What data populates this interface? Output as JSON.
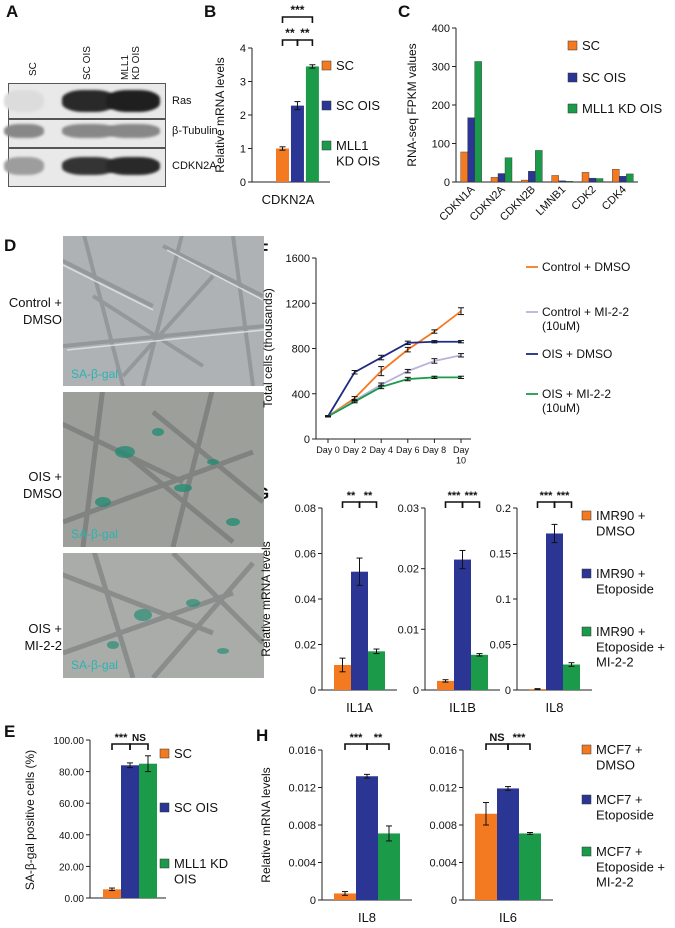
{
  "colors": {
    "orange": "#f37a20",
    "navy": "#2b3594",
    "green": "#1b9a4a",
    "lavender": "#b9b3da",
    "dark_navy": "#1f2a83",
    "teal": "#2bb3b0"
  },
  "panelA": {
    "letter": "A",
    "lanes": [
      "SC",
      "SC OIS",
      "MLL1\nKD OIS"
    ],
    "blots": [
      {
        "label": "Ras",
        "intensity": [
          0.05,
          0.9,
          0.95
        ]
      },
      {
        "label": "β-Tubulin",
        "intensity": [
          0.45,
          0.45,
          0.45
        ]
      },
      {
        "label": "CDKN2A",
        "intensity": [
          0.35,
          0.85,
          0.9
        ]
      }
    ]
  },
  "panelB": {
    "letter": "B",
    "chart_data": {
      "type": "bar",
      "categories": [
        "CDKN2A"
      ],
      "series": [
        {
          "name": "SC",
          "values": [
            1.0
          ],
          "error": [
            0.05
          ]
        },
        {
          "name": "SC OIS",
          "values": [
            2.28
          ],
          "error": [
            0.12
          ]
        },
        {
          "name": "MLL1\nKD OIS",
          "values": [
            3.45
          ],
          "error": [
            0.05
          ]
        }
      ],
      "ylabel": "Relative mRNA levels",
      "ylim": [
        0,
        4
      ],
      "yticks": [
        "0",
        "1",
        "2",
        "3",
        "4"
      ],
      "significance": [
        {
          "pair": [
            0,
            1
          ],
          "label": "**"
        },
        {
          "pair": [
            1,
            2
          ],
          "label": "**"
        },
        {
          "pair": [
            0,
            2
          ],
          "label": "***"
        }
      ]
    }
  },
  "panelC": {
    "letter": "C",
    "chart_data": {
      "type": "bar",
      "categories": [
        "CDKN1A",
        "CDKN2A",
        "CDKN2B",
        "LMNB1",
        "CDK2",
        "CDK4"
      ],
      "series": [
        {
          "name": "SC",
          "values": [
            78,
            12,
            5,
            17,
            25,
            33
          ]
        },
        {
          "name": "SC OIS",
          "values": [
            167,
            22,
            28,
            3,
            10,
            15
          ]
        },
        {
          "name": "MLL1 KD OIS",
          "values": [
            313,
            63,
            82,
            2,
            9,
            21
          ]
        }
      ],
      "ylabel": "RNA-seq FPKM values",
      "ylim": [
        0,
        400
      ],
      "yticks": [
        "0",
        "100",
        "200",
        "300",
        "400"
      ]
    }
  },
  "panelD": {
    "letter": "D",
    "rows": [
      {
        "label": "Control +\nDMSO",
        "stain": "SA-β-gal"
      },
      {
        "label": "OIS +\nDMSO",
        "stain": "SA-β-gal"
      },
      {
        "label": "OIS +\nMI-2-2",
        "stain": "SA-β-gal"
      }
    ]
  },
  "panelE": {
    "letter": "E",
    "chart_data": {
      "type": "bar",
      "categories": [
        ""
      ],
      "series": [
        {
          "name": "SC",
          "values": [
            5.5
          ],
          "error": [
            0.8
          ]
        },
        {
          "name": "SC OIS",
          "values": [
            84
          ],
          "error": [
            1.5
          ]
        },
        {
          "name": "MLL1 KD\nOIS",
          "values": [
            85
          ],
          "error": [
            5
          ]
        }
      ],
      "ylabel": "SA-β-gal positive cells (%)",
      "ylim": [
        0,
        100
      ],
      "yticks": [
        "0.00",
        "20.00",
        "40.00",
        "60.00",
        "80.00",
        "100.00"
      ],
      "significance": [
        {
          "pair": [
            0,
            1
          ],
          "label": "***"
        },
        {
          "pair": [
            1,
            2
          ],
          "label": "NS"
        }
      ]
    }
  },
  "panelF": {
    "letter": "F",
    "chart_data": {
      "type": "line",
      "x": [
        "Day 0",
        "Day 2",
        "Day 4",
        "Day 6",
        "Day 8",
        "Day\n10"
      ],
      "series": [
        {
          "name": "Control + DMSO",
          "values": [
            200,
            360,
            600,
            790,
            950,
            1130
          ],
          "error": [
            5,
            15,
            40,
            20,
            15,
            30
          ]
        },
        {
          "name": "Control + MI-2-2\n(10uM)",
          "values": [
            200,
            340,
            480,
            600,
            690,
            740
          ],
          "error": [
            5,
            10,
            15,
            15,
            20,
            15
          ]
        },
        {
          "name": "OIS + DMSO",
          "values": [
            200,
            590,
            720,
            850,
            860,
            860
          ],
          "error": [
            5,
            15,
            20,
            15,
            10,
            10
          ]
        },
        {
          "name": "OIS + MI-2-2\n(10uM)",
          "values": [
            200,
            330,
            460,
            530,
            545,
            545
          ],
          "error": [
            5,
            10,
            15,
            15,
            10,
            10
          ]
        }
      ],
      "ylabel": "Total cells (thousands)",
      "ylim": [
        0,
        1600
      ],
      "yticks": [
        "0",
        "400",
        "800",
        "1200",
        "1600"
      ]
    }
  },
  "panelG": {
    "letter": "G",
    "ylabel": "Relative mRNA levels",
    "legend": [
      "IMR90 +\nDMSO",
      "IMR90 +\nEtoposide",
      "IMR90 +\nEtoposide +\nMI-2-2"
    ],
    "chart_data": [
      {
        "type": "bar",
        "category": "IL1A",
        "values": [
          0.011,
          0.052,
          0.017
        ],
        "error": [
          0.003,
          0.006,
          0.001
        ],
        "ylim": [
          0,
          0.08
        ],
        "yticks": [
          "0",
          "0.02",
          "0.04",
          "0.06",
          "0.08"
        ],
        "significance": [
          "**",
          "**"
        ]
      },
      {
        "type": "bar",
        "category": "IL1B",
        "values": [
          0.0015,
          0.0215,
          0.0058
        ],
        "error": [
          0.0002,
          0.0015,
          0.0002
        ],
        "ylim": [
          0,
          0.03
        ],
        "yticks": [
          "0",
          "0.01",
          "0.02",
          "0.03"
        ],
        "significance": [
          "***",
          "***"
        ]
      },
      {
        "type": "bar",
        "category": "IL8",
        "values": [
          0.001,
          0.172,
          0.028
        ],
        "error": [
          0.0005,
          0.01,
          0.002
        ],
        "ylim": [
          0,
          0.2
        ],
        "yticks": [
          "0",
          "0.05",
          "0.1",
          "0.15",
          "0.2"
        ],
        "significance": [
          "***",
          "***"
        ]
      }
    ]
  },
  "panelH": {
    "letter": "H",
    "ylabel": "Relative mRNA levels",
    "legend": [
      "MCF7 +\nDMSO",
      "MCF7 +\nEtoposide",
      "MCF7 +\nEtoposide +\nMI-2-2"
    ],
    "chart_data": [
      {
        "type": "bar",
        "category": "IL8",
        "values": [
          0.0007,
          0.0132,
          0.0071
        ],
        "error": [
          0.0002,
          0.0002,
          0.0008
        ],
        "ylim": [
          0,
          0.016
        ],
        "yticks": [
          "0",
          "0.004",
          "0.008",
          "0.012",
          "0.016"
        ],
        "significance": [
          "***",
          "**"
        ]
      },
      {
        "type": "bar",
        "category": "IL6",
        "values": [
          0.0092,
          0.0119,
          0.0071
        ],
        "error": [
          0.0012,
          0.0002,
          0.0001
        ],
        "ylim": [
          0,
          0.016
        ],
        "yticks": [
          "0",
          "0.004",
          "0.008",
          "0.012",
          "0.016"
        ],
        "significance": [
          "NS",
          "***"
        ]
      }
    ]
  }
}
